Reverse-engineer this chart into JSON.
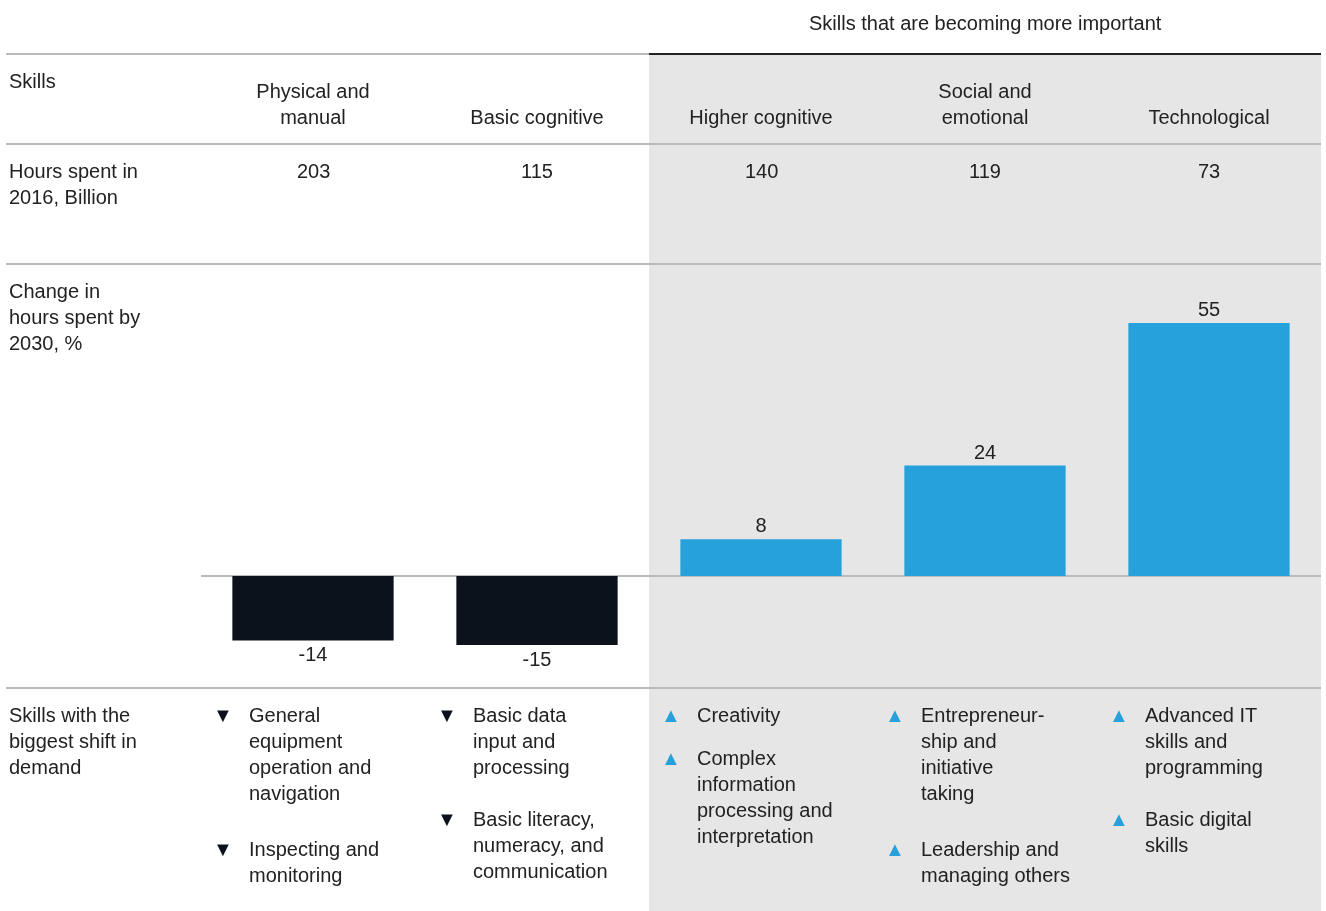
{
  "chart_data": {
    "type": "bar",
    "categories": [
      "Physical and manual",
      "Basic cognitive",
      "Higher cognitive",
      "Social and emotional",
      "Technological"
    ],
    "values": [
      -14,
      -15,
      8,
      24,
      55
    ],
    "colors": [
      "#0b121c",
      "#0b121c",
      "#27a1dc",
      "#27a1dc",
      "#27a1dc"
    ],
    "data_labels": true,
    "grid": false,
    "tick_labels": "x",
    "bands": [
      {
        "axis": "x",
        "from": "Higher cognitive",
        "to": "Technological",
        "label": "Skills that are becoming more important",
        "color": "#e6e6e6"
      }
    ],
    "annotations": [
      "Skills",
      "Hours spent in 2016, Billion",
      "Change in hours spent by 2030, %",
      "Skills with the biggest shift in demand",
      "203",
      "115",
      "140",
      "119",
      "73",
      "▼ General equipment operation and navigation\n▼ Inspecting and monitoring",
      "▼ Basic data input and processing\n▼ Basic literacy, numeracy, and communication",
      "▲ Creativity\n▲ Complex information processing and interpretation",
      "▲ Entrepreneur-ship and initiative taking\n▲ Leadership and managing others",
      "▲ Advanced IT skills and programming\n▲ Basic digital skills"
    ]
  }
}
